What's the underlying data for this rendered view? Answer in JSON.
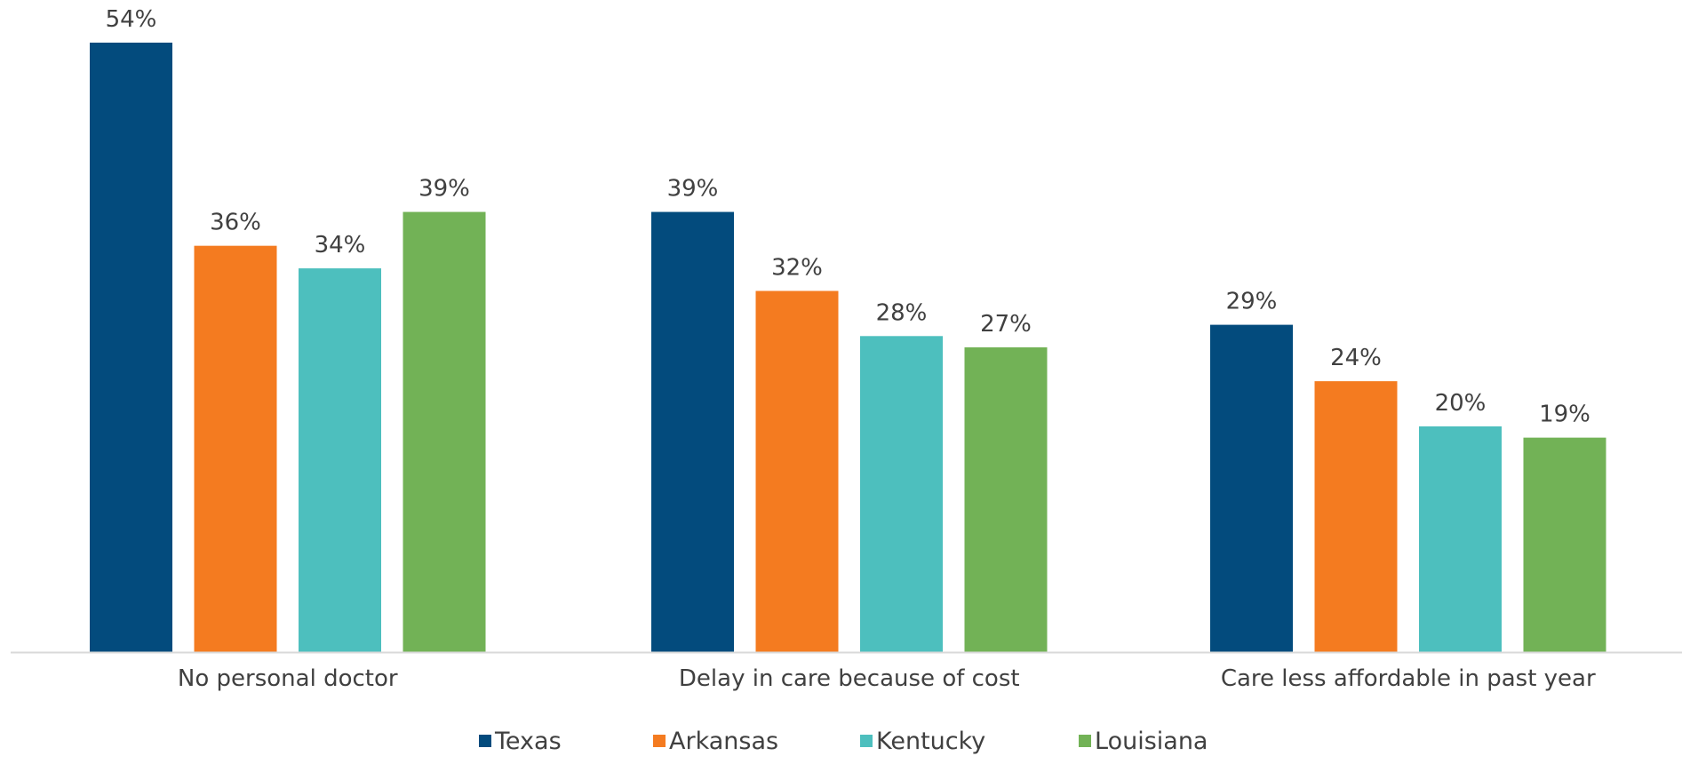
{
  "chart_data": {
    "type": "bar",
    "categories": [
      "No personal doctor",
      "Delay in care because of cost",
      "Care less affordable in past year"
    ],
    "series": [
      {
        "name": "Texas",
        "values": [
          54,
          39,
          29
        ],
        "color": "#034b7d"
      },
      {
        "name": "Arkansas",
        "values": [
          36,
          32,
          24
        ],
        "color": "#f47b20"
      },
      {
        "name": "Kentucky",
        "values": [
          34,
          28,
          20
        ],
        "color": "#4dbfbe"
      },
      {
        "name": "Louisiana",
        "values": [
          39,
          27,
          19
        ],
        "color": "#72b256"
      }
    ],
    "value_suffix": "%",
    "ylim": [
      0,
      57
    ],
    "grid": false,
    "legend_position": "bottom",
    "baseline_color": "#d9d9d9"
  }
}
